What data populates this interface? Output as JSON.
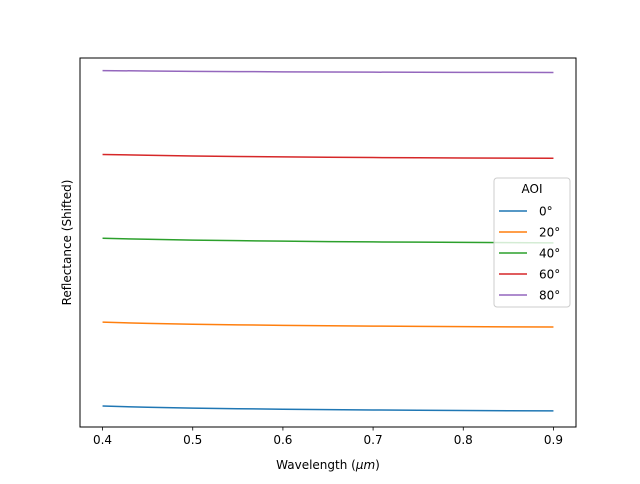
{
  "chart_data": {
    "type": "line",
    "xlabel": "Wavelength (",
    "xlabel_unit": "μm",
    "xlabel_close": ")",
    "ylabel": "Reflectance (Shifted)",
    "xlim": [
      0.375,
      0.925
    ],
    "ylim": [
      -0.13,
      4.27
    ],
    "x_ticks": [
      0.4,
      0.5,
      0.6,
      0.7,
      0.8,
      0.9
    ],
    "x_tick_labels": [
      "0.4",
      "0.5",
      "0.6",
      "0.7",
      "0.8",
      "0.9"
    ],
    "y_ticks_visible": false,
    "grid": false,
    "legend": {
      "title": "AOI",
      "placement": "center-right"
    },
    "x": [
      0.4,
      0.45,
      0.5,
      0.55,
      0.6,
      0.65,
      0.7,
      0.75,
      0.8,
      0.85,
      0.9
    ],
    "series": [
      {
        "name": "0°",
        "color": "#1f77b4",
        "values": [
          0.12,
          0.105,
          0.095,
          0.088,
          0.082,
          0.077,
          0.073,
          0.07,
          0.067,
          0.064,
          0.062
        ]
      },
      {
        "name": "20°",
        "color": "#ff7f0e",
        "values": [
          1.12,
          1.105,
          1.095,
          1.088,
          1.082,
          1.077,
          1.073,
          1.07,
          1.067,
          1.064,
          1.062
        ]
      },
      {
        "name": "40°",
        "color": "#2ca02c",
        "values": [
          2.12,
          2.108,
          2.099,
          2.092,
          2.086,
          2.081,
          2.077,
          2.074,
          2.071,
          2.068,
          2.066
        ]
      },
      {
        "name": "60°",
        "color": "#d62728",
        "values": [
          3.12,
          3.11,
          3.102,
          3.096,
          3.091,
          3.087,
          3.083,
          3.08,
          3.078,
          3.076,
          3.074
        ]
      },
      {
        "name": "80°",
        "color": "#9467bd",
        "values": [
          4.12,
          4.115,
          4.111,
          4.108,
          4.105,
          4.103,
          4.101,
          4.1,
          4.099,
          4.098,
          4.097
        ]
      }
    ]
  }
}
